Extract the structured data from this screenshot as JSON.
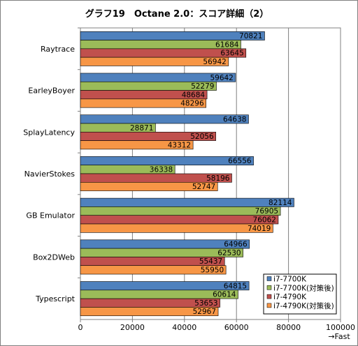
{
  "chart_data": {
    "type": "bar",
    "orientation": "horizontal",
    "title": "グラフ19　Octane 2.0：スコア詳細（2）",
    "categories": [
      "Raytrace",
      "EarleyBoyer",
      "SplayLatency",
      "NavierStokes",
      "GB Emulator",
      "Box2DWeb",
      "Typescript"
    ],
    "series": [
      {
        "name": "i7-7700K",
        "color": "#4f81bd",
        "values": [
          70821,
          59642,
          64638,
          66556,
          82114,
          64966,
          64815
        ]
      },
      {
        "name": "i7-7700K(対策後)",
        "color": "#9bbb59",
        "values": [
          61684,
          52279,
          28871,
          36338,
          76905,
          62530,
          60614
        ]
      },
      {
        "name": "i7-4790K",
        "color": "#c0504d",
        "values": [
          63645,
          48684,
          52056,
          58196,
          76062,
          55437,
          53653
        ]
      },
      {
        "name": "i7-4790K(対策後)",
        "color": "#f79646",
        "values": [
          56942,
          48296,
          43312,
          52747,
          74019,
          55950,
          52967
        ]
      }
    ],
    "xlim": [
      0,
      100000
    ],
    "xticks": [
      "0",
      "20000",
      "40000",
      "60000",
      "80000",
      "100000"
    ],
    "xlabel": "→Fast",
    "grid": true,
    "legend_position": "bottom-right",
    "plot_background": "#ffffff",
    "gridline_color": "#808080"
  }
}
